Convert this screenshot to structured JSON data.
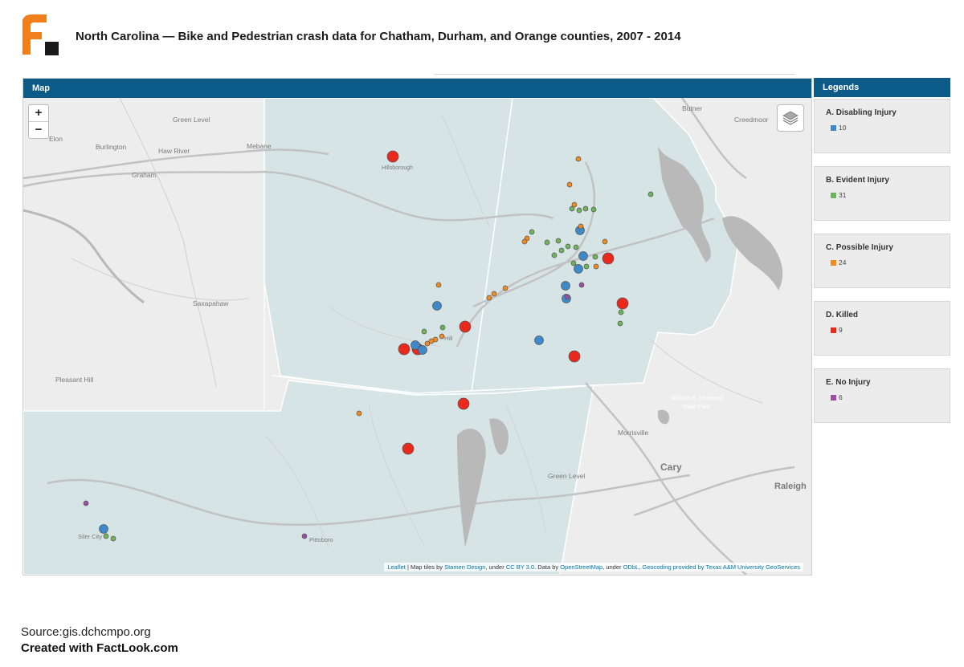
{
  "header": {
    "title": "North Carolina — Bike and Pedestrian crash data for Chatham, Durham, and Orange counties, 2007 - 2014"
  },
  "map_panel": {
    "title": "Map",
    "zoom_in": "+",
    "zoom_out": "−",
    "place_labels": [
      "Green Level",
      "Elon",
      "Burlington",
      "Haw River",
      "Mebane",
      "Graham",
      "Hillsborough",
      "Butner",
      "Creedmoor",
      "Saxapahaw",
      "Pleasant Hill",
      "William B. Umstead State Park",
      "Morrisville",
      "Cary",
      "Green Level",
      "Raleigh",
      "Siler City",
      "Pittsboro",
      "Hill"
    ],
    "attribution": {
      "leaflet": "Leaflet",
      "text1": " | Map tiles by ",
      "stamen": "Stamen Design",
      "text2": ", under ",
      "ccby": "CC BY 3.0",
      "text3": ". Data by ",
      "osm": "OpenStreetMap",
      "text4": ", under ",
      "odbl": "ODbL",
      "text5": ", ",
      "geocoding": "Geocoding provided by Texas A&M University GeoServices"
    }
  },
  "legend": {
    "title": "Legends",
    "items": [
      {
        "label": "A. Disabling Injury",
        "count": "10",
        "color": "#3d89c9"
      },
      {
        "label": "B. Evident Injury",
        "count": "31",
        "color": "#6fb35a"
      },
      {
        "label": "C. Possible Injury",
        "count": "24",
        "color": "#f28a1e"
      },
      {
        "label": "D. Killed",
        "count": "9",
        "color": "#e8291c"
      },
      {
        "label": "E. No Injury",
        "count": "6",
        "color": "#9b4f9e"
      }
    ]
  },
  "footer": {
    "source": "Source:gis.dchcmpo.org",
    "created": "Created with FactLook.com"
  }
}
